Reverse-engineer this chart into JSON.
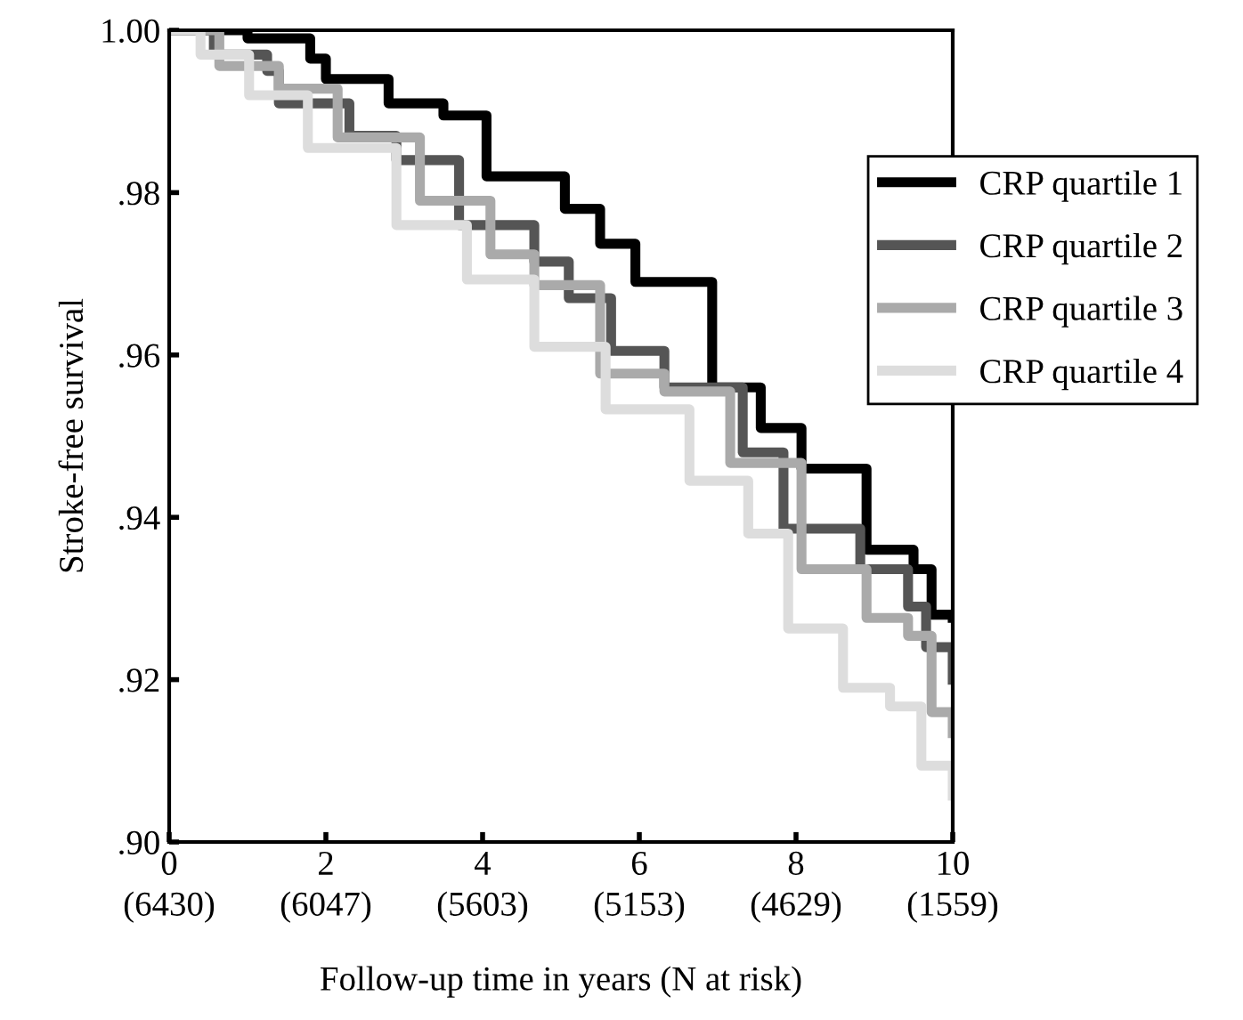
{
  "chart_data": {
    "type": "step",
    "xlabel": "Follow-up time in years (N at risk)",
    "ylabel": "Stroke-free survival",
    "xlim": [
      0,
      10
    ],
    "xticks": [
      0,
      2,
      4,
      6,
      8,
      10
    ],
    "annotations": [
      "(6430)",
      "(6047)",
      "(5603)",
      "(5153)",
      "(4629)",
      "(1559)"
    ],
    "ylim": [
      0.9,
      1.0
    ],
    "yticks": [
      {
        "value": 0.9,
        "label": ".90"
      },
      {
        "value": 0.92,
        "label": ".92"
      },
      {
        "value": 0.94,
        "label": ".94"
      },
      {
        "value": 0.96,
        "label": ".96"
      },
      {
        "value": 0.98,
        "label": ".98"
      },
      {
        "value": 1.0,
        "label": "1.00"
      }
    ],
    "grid": false,
    "legend": "top right",
    "line_style": "solid",
    "marker": "none",
    "series": [
      {
        "name": "CRP quartile 1",
        "color": "#000000",
        "x": [
          0,
          1.0,
          1.8,
          2.0,
          2.8,
          3.5,
          4.05,
          5.05,
          5.5,
          5.95,
          6.93,
          7.55,
          8.07,
          8.9,
          9.5,
          9.73,
          10
        ],
        "values": [
          1.0,
          0.999,
          0.9965,
          0.994,
          0.991,
          0.9895,
          0.982,
          0.978,
          0.9737,
          0.969,
          0.956,
          0.951,
          0.946,
          0.936,
          0.9336,
          0.928,
          0.9276
        ]
      },
      {
        "name": "CRP quartile 2",
        "color": "#555555",
        "x": [
          0,
          0.57,
          1.25,
          1.4,
          2.3,
          2.9,
          3.7,
          4.66,
          5.1,
          5.64,
          6.32,
          7.32,
          7.84,
          8.82,
          9.43,
          9.66,
          10
        ],
        "values": [
          1.0,
          0.997,
          0.995,
          0.991,
          0.987,
          0.984,
          0.976,
          0.9715,
          0.967,
          0.9605,
          0.956,
          0.948,
          0.9386,
          0.9336,
          0.929,
          0.924,
          0.92
        ]
      },
      {
        "name": "CRP quartile 3",
        "color": "#aaaaaa",
        "x": [
          0,
          0.64,
          1.4,
          2.15,
          3.2,
          4.1,
          4.66,
          5.5,
          6.32,
          7.16,
          8.07,
          8.9,
          9.43,
          9.73,
          10
        ],
        "values": [
          1.0,
          0.9956,
          0.9928,
          0.9868,
          0.979,
          0.9724,
          0.9686,
          0.9577,
          0.9555,
          0.9467,
          0.9336,
          0.9276,
          0.9254,
          0.916,
          0.9134
        ]
      },
      {
        "name": "CRP quartile 4",
        "color": "#dddddd",
        "x": [
          0,
          0.4,
          1.02,
          1.77,
          2.9,
          3.8,
          4.66,
          5.57,
          6.64,
          7.39,
          7.9,
          8.6,
          9.2,
          9.6,
          10
        ],
        "values": [
          1.0,
          0.997,
          0.992,
          0.9855,
          0.976,
          0.9693,
          0.961,
          0.9533,
          0.9445,
          0.938,
          0.9263,
          0.919,
          0.9167,
          0.9094,
          0.9057
        ]
      }
    ]
  }
}
